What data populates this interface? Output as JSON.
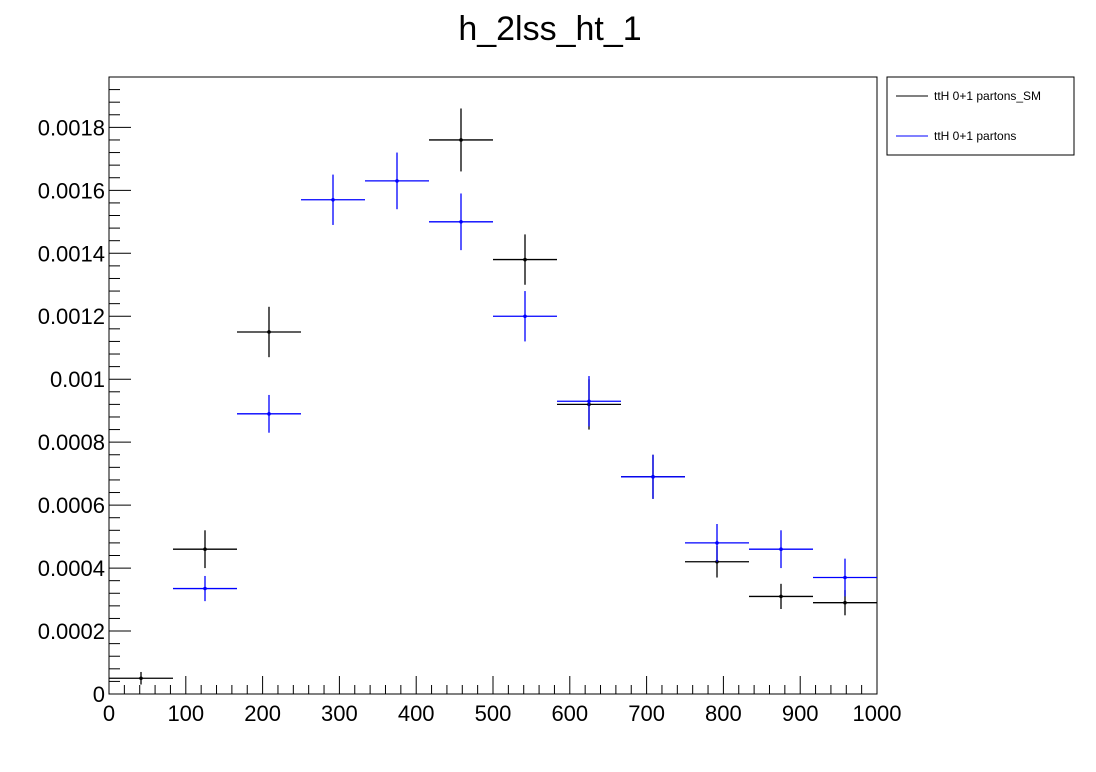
{
  "chart_data": {
    "type": "scatter",
    "title": "h_2lss_ht_1",
    "xlabel": "",
    "ylabel": "",
    "xlim": [
      0,
      1000
    ],
    "ylim": [
      0,
      0.00196
    ],
    "grid": false,
    "legend_position": "top-right outside",
    "x_ticks": [
      0,
      100,
      200,
      300,
      400,
      500,
      600,
      700,
      800,
      900,
      1000
    ],
    "x_tick_labels": [
      "0",
      "100",
      "200",
      "300",
      "400",
      "500",
      "600",
      "700",
      "800",
      "900",
      "1000"
    ],
    "y_ticks": [
      0,
      0.0002,
      0.0004,
      0.0006,
      0.0008,
      0.001,
      0.0012,
      0.0014,
      0.0016,
      0.0018
    ],
    "y_tick_labels": [
      "0",
      "0.0002",
      "0.0004",
      "0.0006",
      "0.0008",
      "0.001",
      "0.0012",
      "0.0014",
      "0.0016",
      "0.0018"
    ],
    "bin_edges": [
      0,
      83.33,
      166.67,
      250,
      333.33,
      416.67,
      500,
      583.33,
      666.67,
      750,
      833.33,
      916.67,
      1000
    ],
    "series": [
      {
        "name": "ttH 0+1 partons_SM",
        "color": "#000000",
        "x": [
          41.67,
          125,
          208.33,
          291.67,
          375,
          458.33,
          541.67,
          625,
          708.33,
          791.67,
          875,
          958.33
        ],
        "values": [
          5e-05,
          0.00046,
          0.00115,
          null,
          null,
          0.00176,
          0.00138,
          0.00092,
          0.00069,
          0.00042,
          0.00031,
          0.00029
        ],
        "errors": [
          2e-05,
          6e-05,
          8e-05,
          null,
          null,
          0.0001,
          8e-05,
          8e-05,
          7e-05,
          5e-05,
          4e-05,
          4e-05
        ]
      },
      {
        "name": "ttH 0+1 partons",
        "color": "#0000ff",
        "x": [
          41.67,
          125,
          208.33,
          291.67,
          375,
          458.33,
          541.67,
          625,
          708.33,
          791.67,
          875,
          958.33
        ],
        "values": [
          null,
          0.000335,
          0.00089,
          0.00157,
          0.00163,
          0.0015,
          0.0012,
          0.00093,
          0.00069,
          0.00048,
          0.00046,
          0.00037
        ],
        "errors": [
          null,
          4e-05,
          6e-05,
          8e-05,
          9e-05,
          9e-05,
          8e-05,
          8e-05,
          7e-05,
          6e-05,
          6e-05,
          6e-05
        ]
      }
    ]
  }
}
